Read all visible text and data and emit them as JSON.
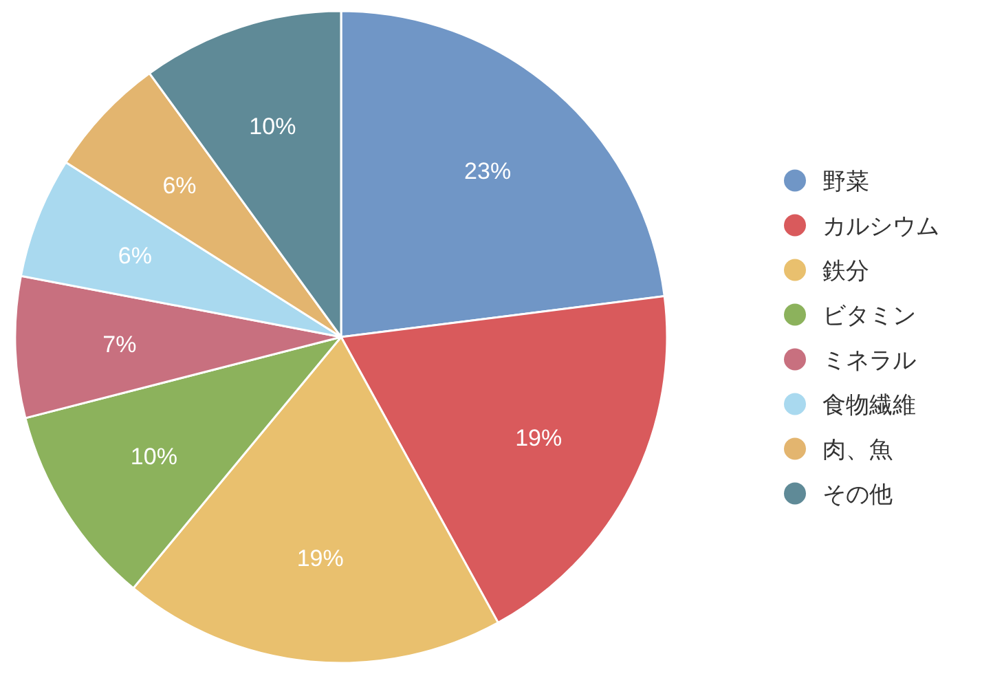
{
  "chart_data": {
    "type": "pie",
    "categories": [
      "野菜",
      "カルシウム",
      "鉄分",
      "ビタミン",
      "ミネラル",
      "食物繊維",
      "肉、魚",
      "その他"
    ],
    "values": [
      23,
      19,
      19,
      10,
      7,
      6,
      6,
      10
    ],
    "colors": [
      "#7096c6",
      "#d95a5c",
      "#e9c06e",
      "#8cb25c",
      "#c8707f",
      "#a9d9ef",
      "#e3b56f",
      "#5f8a97"
    ],
    "value_labels": [
      "23%",
      "19%",
      "19%",
      "10%",
      "7%",
      "6%",
      "6%",
      "10%"
    ],
    "legend": "right"
  }
}
